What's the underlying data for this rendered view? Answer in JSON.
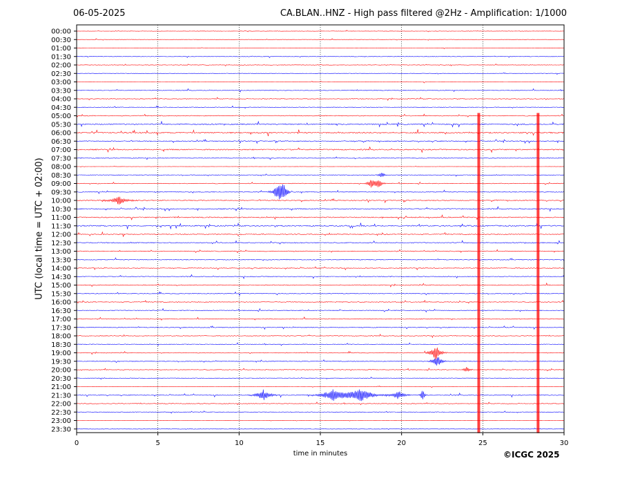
{
  "header": {
    "date": "06-05-2025",
    "title": "CA.BLAN..HNZ - High pass filtered @2Hz - Amplification: 1/1000"
  },
  "footer": {
    "copyright": "©ICGC 2025"
  },
  "colors": {
    "red": "#ff0000",
    "blue": "#0000ff",
    "grid": "#000000"
  },
  "chart_data": {
    "type": "line",
    "title": "CA.BLAN..HNZ - High pass filtered @2Hz - Amplification: 1/1000",
    "xlabel": "time in minutes",
    "ylabel": "UTC (local time = UTC + 02:00)",
    "xlim": [
      0,
      30
    ],
    "xticks": [
      "0",
      "5",
      "10",
      "15",
      "20",
      "25",
      "30"
    ],
    "vertical_gridlines_minutes": [
      5,
      10,
      15,
      20,
      25
    ],
    "row_labels": [
      "00:00",
      "00:30",
      "01:00",
      "01:30",
      "02:00",
      "02:30",
      "03:00",
      "03:30",
      "04:00",
      "04:30",
      "05:00",
      "05:30",
      "06:00",
      "06:30",
      "07:00",
      "07:30",
      "08:00",
      "08:30",
      "09:00",
      "09:30",
      "10:00",
      "10:30",
      "11:00",
      "11:30",
      "12:00",
      "12:30",
      "13:00",
      "13:30",
      "14:00",
      "14:30",
      "15:00",
      "15:30",
      "16:00",
      "16:30",
      "17:00",
      "17:30",
      "18:00",
      "18:30",
      "19:00",
      "19:30",
      "20:00",
      "20:30",
      "21:00",
      "21:30",
      "22:00",
      "22:30",
      "23:00",
      "23:30"
    ],
    "row_colors": [
      "red",
      "red",
      "red",
      "blue",
      "red",
      "blue",
      "red",
      "blue",
      "red",
      "blue",
      "red",
      "blue",
      "red",
      "blue",
      "red",
      "blue",
      "red",
      "blue",
      "red",
      "blue",
      "red",
      "blue",
      "red",
      "blue",
      "red",
      "blue",
      "red",
      "blue",
      "red",
      "blue",
      "red",
      "blue",
      "red",
      "blue",
      "red",
      "blue",
      "red",
      "blue",
      "red",
      "blue",
      "red",
      "blue",
      "red",
      "blue",
      "red",
      "blue",
      "red",
      "blue"
    ],
    "row_noise_level": [
      0.3,
      0.3,
      0.3,
      0.4,
      0.4,
      0.3,
      0.3,
      0.5,
      0.5,
      0.5,
      0.6,
      0.9,
      1.0,
      0.7,
      0.9,
      0.6,
      0.2,
      0.5,
      0.5,
      0.6,
      0.7,
      0.7,
      0.8,
      0.9,
      0.7,
      0.7,
      0.6,
      0.6,
      0.6,
      0.6,
      0.6,
      0.6,
      0.6,
      0.6,
      0.6,
      0.6,
      0.5,
      0.5,
      0.5,
      0.6,
      0.5,
      0.4,
      0.3,
      0.6,
      0.5,
      0.4,
      0.3,
      0.3
    ],
    "events": [
      {
        "row": 18,
        "minute": 18.2,
        "amp": 8,
        "dur": 0.6
      },
      {
        "row": 18,
        "minute": 18.6,
        "amp": 6,
        "dur": 0.5
      },
      {
        "row": 17,
        "minute": 18.8,
        "amp": 5,
        "dur": 0.4
      },
      {
        "row": 19,
        "minute": 12.4,
        "amp": 11,
        "dur": 0.7
      },
      {
        "row": 19,
        "minute": 12.7,
        "amp": 10,
        "dur": 0.6
      },
      {
        "row": 20,
        "minute": 2.6,
        "amp": 6,
        "dur": 1.2
      },
      {
        "row": 38,
        "minute": 22.1,
        "amp": 12,
        "dur": 0.7
      },
      {
        "row": 39,
        "minute": 22.2,
        "amp": 10,
        "dur": 0.6
      },
      {
        "row": 40,
        "minute": 24.0,
        "amp": 5,
        "dur": 0.4
      },
      {
        "row": 43,
        "minute": 11.5,
        "amp": 8,
        "dur": 1.0
      },
      {
        "row": 43,
        "minute": 15.8,
        "amp": 9,
        "dur": 1.6
      },
      {
        "row": 43,
        "minute": 17.5,
        "amp": 10,
        "dur": 1.8
      },
      {
        "row": 43,
        "minute": 19.8,
        "amp": 7,
        "dur": 0.8
      },
      {
        "row": 43,
        "minute": 21.3,
        "amp": 9,
        "dur": 0.3
      }
    ],
    "spikes": [
      {
        "minute": 24.75,
        "from_row": 10,
        "to_row": 47
      },
      {
        "minute": 28.4,
        "from_row": 10,
        "to_row": 47
      }
    ]
  }
}
